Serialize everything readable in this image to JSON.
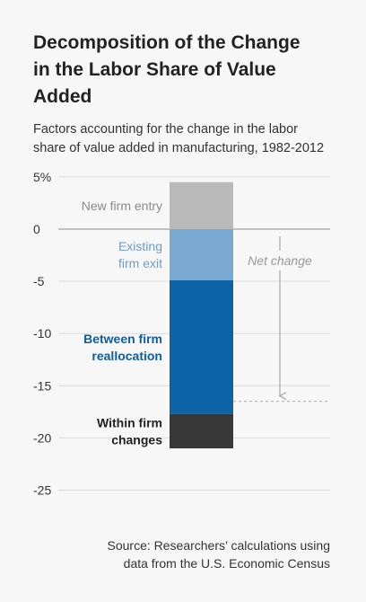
{
  "header": {
    "title_line1": "Decomposition of the Change",
    "title_line2": "in the Labor Share of Value Added",
    "subtitle_line1": "Factors accounting for the change in the labor",
    "subtitle_line2": "share of value added in manufacturing, 1982-2012"
  },
  "source": {
    "line1": "Source: Researchers’ calculations using",
    "line2": "data from the U.S. Economic Census"
  },
  "chart_data": {
    "type": "bar",
    "subtype": "waterfall-stacked",
    "title": "Decomposition of the Change in the Labor Share of Value Added",
    "subtitle": "Factors accounting for the change in the labor share of value added in manufacturing, 1982-2012",
    "ylim": [
      -25,
      5
    ],
    "yticks": [
      5,
      0,
      -5,
      -10,
      -15,
      -20,
      -25
    ],
    "ytick_labels": [
      "5%",
      "0",
      "-5",
      "-10",
      "-15",
      "-20",
      "-25"
    ],
    "grid": true,
    "series": [
      {
        "name_line1": "New firm entry",
        "name_line2": "",
        "start": 0,
        "end": 4.5,
        "value": 4.5,
        "color": "#b9b9b9",
        "label_color": "#8a8a8a"
      },
      {
        "name_line1": "Existing",
        "name_line2": "firm exit",
        "start": 0,
        "end": -4.9,
        "value": -4.9,
        "color": "#7aaad3",
        "label_color": "#6a9fcc"
      },
      {
        "name_line1": "Between firm",
        "name_line2": "reallocation",
        "start": -4.9,
        "end": -17.7,
        "value": -12.8,
        "color": "#0c64a6",
        "label_color": "#0c5ea6"
      },
      {
        "name_line1": "Within firm",
        "name_line2": "changes",
        "start": -17.7,
        "end": -21.0,
        "value": -3.3,
        "color": "#383838",
        "label_color": "#222222"
      }
    ],
    "net_change": {
      "label": "Net change",
      "from": 0,
      "to": -16.5
    }
  }
}
